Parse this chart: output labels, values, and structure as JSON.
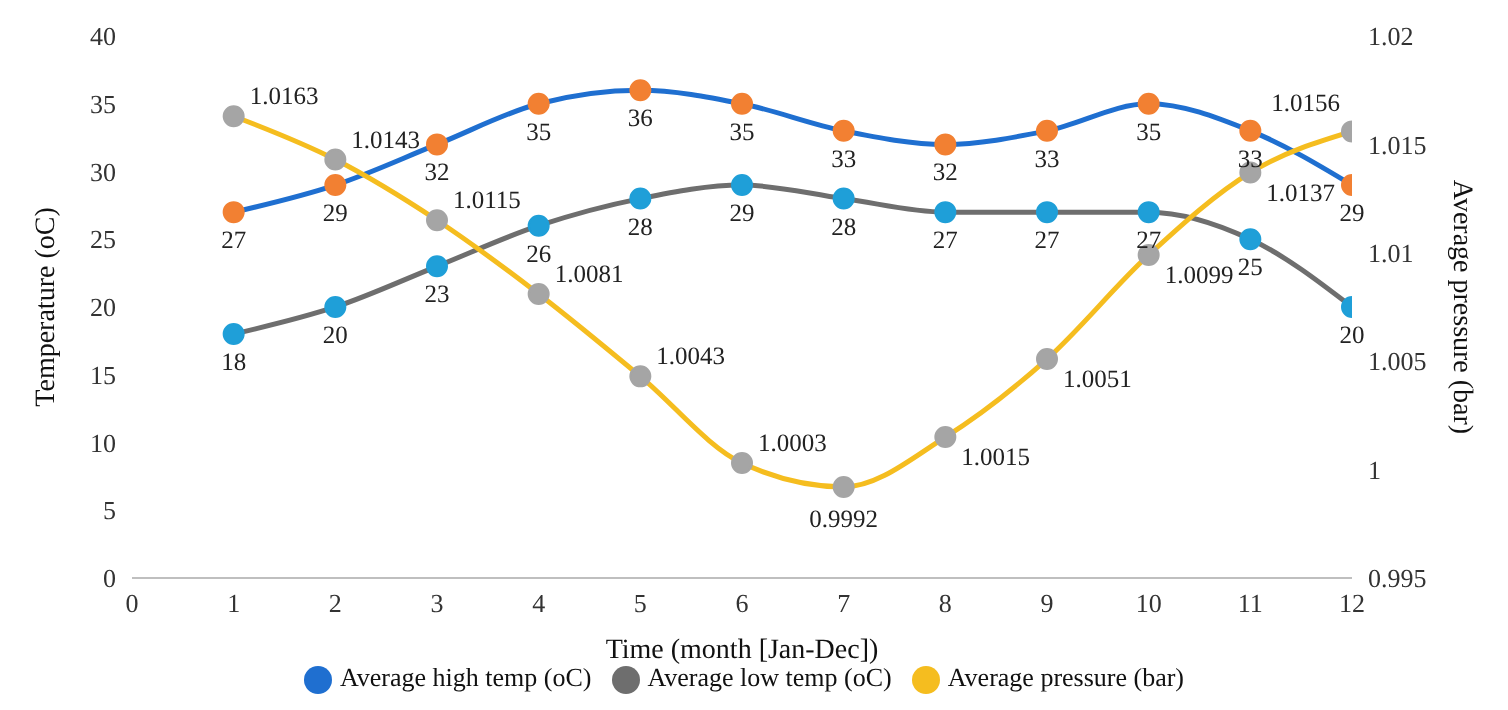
{
  "chart_data": {
    "type": "line",
    "xlabel": "Time (month [Jan-Dec])",
    "ylabel": "Temperature (oC)",
    "y2label": "Average pressure (bar)",
    "x": [
      1,
      2,
      3,
      4,
      5,
      6,
      7,
      8,
      9,
      10,
      11,
      12
    ],
    "xlim": [
      0,
      12
    ],
    "xticks": [
      0,
      1,
      2,
      3,
      4,
      5,
      6,
      7,
      8,
      9,
      10,
      11,
      12
    ],
    "ylim": [
      0,
      40
    ],
    "yticks": [
      0,
      5,
      10,
      15,
      20,
      25,
      30,
      35,
      40
    ],
    "y2lim": [
      0.995,
      1.02
    ],
    "y2ticks": [
      0.995,
      1,
      1.005,
      1.01,
      1.015,
      1.02
    ],
    "legend": "bottom",
    "marker": "circle",
    "data_labels": true,
    "series": [
      {
        "name": "Average low temp (oC)",
        "color": "#6e6e6e",
        "colors": [
          "#1f9fd8",
          "#1f9fd8",
          "#1f9fd8",
          "#1f9fd8",
          "#1f9fd8",
          "#1f9fd8",
          "#1f9fd8",
          "#1f9fd8",
          "#1f9fd8",
          "#1f9fd8",
          "#1f9fd8",
          "#1f9fd8"
        ],
        "values": [
          18,
          20,
          23,
          26,
          28,
          29,
          28,
          27,
          27,
          27,
          25,
          20
        ]
      },
      {
        "name": "Average high temp (oC)",
        "color": "#1f6fd0",
        "colors": [
          "#f28032",
          "#f28032",
          "#f28032",
          "#f28032",
          "#f28032",
          "#f28032",
          "#f28032",
          "#f28032",
          "#f28032",
          "#f28032",
          "#f28032",
          "#f28032"
        ],
        "values": [
          27,
          29,
          32,
          35,
          36,
          35,
          33,
          32,
          33,
          35,
          33,
          29
        ]
      },
      {
        "name": "Average pressure (bar)",
        "color": "#f5bd1f",
        "axis": "y2",
        "colors": [
          "#a5a5a5",
          "#a5a5a5",
          "#a5a5a5",
          "#a5a5a5",
          "#a5a5a5",
          "#a5a5a5",
          "#a5a5a5",
          "#a5a5a5",
          "#a5a5a5",
          "#a5a5a5",
          "#a5a5a5",
          "#a5a5a5"
        ],
        "values": [
          1.0163,
          1.0143,
          1.0115,
          1.0081,
          1.0043,
          1.0003,
          0.9992,
          1.0015,
          1.0051,
          1.0099,
          1.0137,
          1.0156
        ]
      }
    ]
  }
}
